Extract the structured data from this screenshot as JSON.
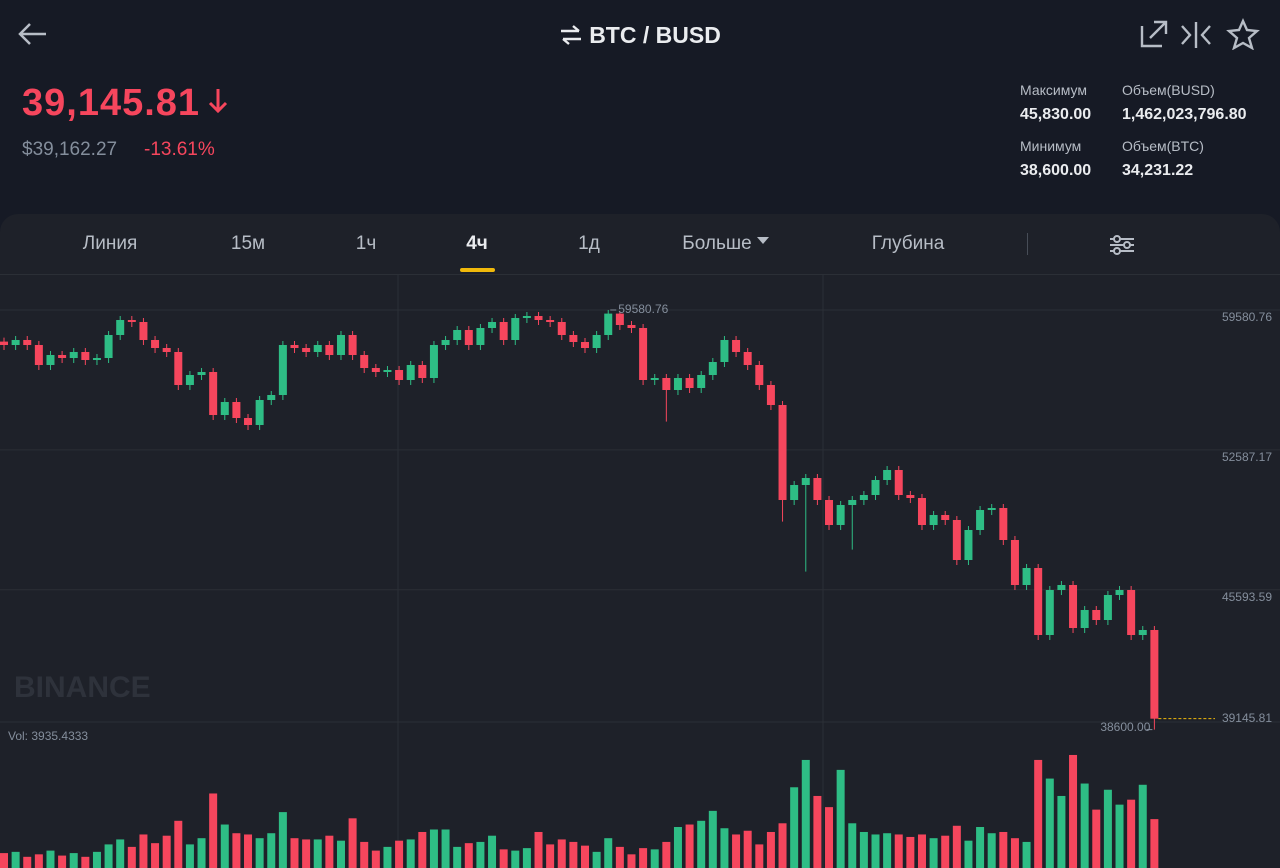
{
  "header": {
    "title": "BTC / BUSD",
    "price": "39,145.81",
    "price_usd": "$39,162.27",
    "change": "-13.61%",
    "stats": [
      {
        "label": "Максимум",
        "value": "45,830.00"
      },
      {
        "label": "Объем(BUSD)",
        "value": "1,462,023,796.80"
      },
      {
        "label": "Минимум",
        "value": "38,600.00"
      },
      {
        "label": "Объем(BTC)",
        "value": "34,231.22"
      }
    ]
  },
  "tabs": [
    "Линия",
    "15м",
    "1ч",
    "4ч",
    "1д",
    "Больше",
    "Глубина"
  ],
  "chart_data": {
    "type": "candlestick",
    "watermark": "BINANCE",
    "volume_label": "Vol:",
    "min_label": "38600.00",
    "up_color": "#2ebd85",
    "down_color": "#f6465d",
    "last_price_color": "#f0b90b",
    "ylim": [
      38580,
      61330
    ],
    "yticks": [
      59580.76,
      52587.17,
      45593.59
    ],
    "grid": true,
    "volume_ylim": [
      0,
      9500
    ],
    "open": [
      58000,
      57830,
      58080,
      57830,
      56830,
      57330,
      57180,
      57480,
      57080,
      57180,
      58330,
      59080,
      58980,
      58080,
      57680,
      57480,
      55830,
      56330,
      56480,
      54330,
      54980,
      54180,
      53830,
      55080,
      55330,
      57830,
      57680,
      57480,
      57830,
      57330,
      58330,
      57330,
      56680,
      56480,
      56580,
      56080,
      56830,
      56180,
      57830,
      58080,
      58580,
      57830,
      58680,
      58980,
      58080,
      59180,
      59280,
      59080,
      58980,
      58330,
      57980,
      57680,
      58330,
      59400,
      58830,
      58680,
      56080,
      56180,
      55580,
      56180,
      55680,
      56330,
      56980,
      58080,
      57480,
      56830,
      55830,
      54830,
      50080,
      50830,
      51180,
      50080,
      48830,
      49830,
      50080,
      50330,
      51080,
      51580,
      50330,
      50180,
      48830,
      49330,
      49080,
      47080,
      48580,
      49580,
      49680,
      48080,
      45830,
      46680,
      43330,
      45580,
      45830,
      43680,
      44580,
      44080,
      45330,
      45580,
      43330,
      43580
    ],
    "high": [
      58200,
      58280,
      58280,
      58030,
      57530,
      57530,
      57680,
      57680,
      57380,
      58530,
      59280,
      59280,
      59180,
      58280,
      57880,
      57680,
      56530,
      56680,
      56680,
      55180,
      55180,
      54380,
      55280,
      55530,
      58030,
      58030,
      57880,
      58030,
      58030,
      58530,
      58530,
      57530,
      56880,
      56780,
      56780,
      57030,
      57030,
      58030,
      58280,
      58780,
      58780,
      58880,
      59180,
      59180,
      59380,
      59480,
      59480,
      59280,
      59180,
      58530,
      58180,
      58530,
      59580.76,
      59500,
      59030,
      58880,
      56380,
      56380,
      56380,
      56380,
      56530,
      57180,
      58280,
      58280,
      57680,
      57030,
      56030,
      55030,
      51030,
      51380,
      51380,
      50280,
      50030,
      50280,
      50530,
      51280,
      51780,
      51780,
      50530,
      50380,
      49530,
      49530,
      49280,
      48780,
      49780,
      49880,
      49880,
      48280,
      46880,
      46880,
      45780,
      46030,
      46030,
      44780,
      44780,
      45530,
      45780,
      45780,
      43780,
      43780
    ],
    "low": [
      57580,
      57580,
      57580,
      56580,
      56580,
      56930,
      56930,
      56830,
      56830,
      56930,
      58080,
      58730,
      57830,
      57430,
      57230,
      55580,
      55580,
      56080,
      54080,
      54080,
      53930,
      53580,
      53580,
      54830,
      55080,
      57430,
      57230,
      57230,
      57080,
      57080,
      57080,
      56430,
      56230,
      56230,
      55830,
      55830,
      55930,
      55930,
      57580,
      57830,
      57580,
      57580,
      58430,
      57830,
      57830,
      58930,
      58830,
      58730,
      58080,
      57730,
      57430,
      57430,
      58080,
      58580,
      58430,
      55830,
      55830,
      54000,
      55330,
      55430,
      55430,
      56080,
      56730,
      57230,
      56580,
      55580,
      54580,
      49000,
      49830,
      46500,
      49830,
      48580,
      48580,
      47600,
      49830,
      50080,
      50830,
      50080,
      49930,
      48580,
      48580,
      48830,
      46830,
      46830,
      48330,
      49330,
      47830,
      45580,
      45580,
      43080,
      43080,
      45330,
      43430,
      43430,
      43830,
      43830,
      45080,
      43080,
      43080,
      38600
    ],
    "close": [
      57830,
      58080,
      57830,
      56830,
      57330,
      57180,
      57480,
      57080,
      57180,
      58330,
      59080,
      58980,
      58080,
      57680,
      57480,
      55830,
      56330,
      56480,
      54330,
      54980,
      54180,
      53830,
      55080,
      55330,
      57830,
      57680,
      57480,
      57830,
      57330,
      58330,
      57330,
      56680,
      56480,
      56580,
      56080,
      56830,
      56180,
      57830,
      58080,
      58580,
      57830,
      58680,
      58980,
      58080,
      59180,
      59280,
      59080,
      58980,
      58330,
      57980,
      57680,
      58330,
      59400,
      58830,
      58680,
      56080,
      56180,
      55580,
      56180,
      55680,
      56330,
      56980,
      58080,
      57480,
      56830,
      55830,
      54830,
      50080,
      50830,
      51180,
      50080,
      48830,
      49830,
      50080,
      50330,
      51080,
      51580,
      50330,
      50180,
      48830,
      49330,
      49080,
      47080,
      48580,
      49580,
      49680,
      48080,
      45830,
      46680,
      43330,
      45580,
      45830,
      43680,
      44580,
      44080,
      45330,
      45580,
      43330,
      43580,
      39145.81
    ],
    "volumes": [
      1200,
      1300,
      900,
      1100,
      1400,
      1000,
      1200,
      900,
      1300,
      1900,
      2300,
      1700,
      2700,
      2000,
      2600,
      3800,
      1900,
      2400,
      6000,
      3500,
      2800,
      2700,
      2400,
      2800,
      4500,
      2400,
      2300,
      2300,
      2600,
      2200,
      4000,
      2100,
      1400,
      1700,
      2200,
      2300,
      2900,
      3100,
      3100,
      1700,
      2000,
      2100,
      2600,
      1500,
      1400,
      1600,
      2900,
      1900,
      2300,
      2100,
      1800,
      1300,
      2400,
      1700,
      1100,
      1600,
      1500,
      2100,
      3300,
      3500,
      3800,
      4600,
      3200,
      2700,
      3000,
      1900,
      2900,
      3600,
      6500,
      8700,
      5800,
      4900,
      7900,
      3600,
      2900,
      2700,
      2800,
      2700,
      2500,
      2700,
      2400,
      2600,
      3400,
      2200,
      3300,
      2800,
      2900,
      2400,
      2100,
      8700,
      7200,
      5800,
      9100,
      6800,
      4700,
      6300,
      5100,
      5500,
      6700,
      3935.4333
    ]
  }
}
